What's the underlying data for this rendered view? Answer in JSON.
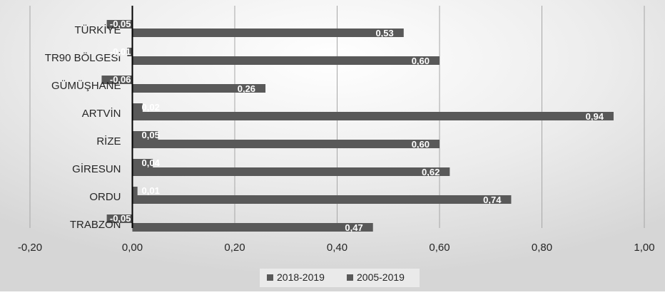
{
  "chart_data": {
    "type": "bar",
    "orientation": "horizontal",
    "title": "",
    "xlabel": "",
    "ylabel": "",
    "categories": [
      "TÜRKİYE",
      "TR90 BÖLGESİ",
      "GÜMÜŞHANE",
      "ARTVİN",
      "RİZE",
      "GİRESUN",
      "ORDU",
      "TRABZON"
    ],
    "series": [
      {
        "name": "2018-2019",
        "values": [
          -0.05,
          -0.01,
          -0.06,
          0.02,
          0.05,
          0.04,
          0.01,
          -0.05
        ],
        "labels": [
          "-0,05",
          "-0,01",
          "-0,06",
          "0,02",
          "0,05",
          "0,04",
          "0,01",
          "-0,05"
        ],
        "color": "#595959"
      },
      {
        "name": "2005-2019",
        "values": [
          0.53,
          0.6,
          0.26,
          0.94,
          0.6,
          0.62,
          0.74,
          0.47
        ],
        "labels": [
          "0,53",
          "0,60",
          "0,26",
          "0,94",
          "0,60",
          "0,62",
          "0,74",
          "0,47"
        ],
        "color": "#595959"
      }
    ],
    "xlim": [
      -0.2,
      1.0
    ],
    "xticks": [
      "-0,20",
      "0,00",
      "0,20",
      "0,40",
      "0,60",
      "0,80",
      "1,00"
    ],
    "grid": "vertical",
    "legend_position": "bottom",
    "background": "#e8e8e8",
    "axis_color": "#000000"
  }
}
